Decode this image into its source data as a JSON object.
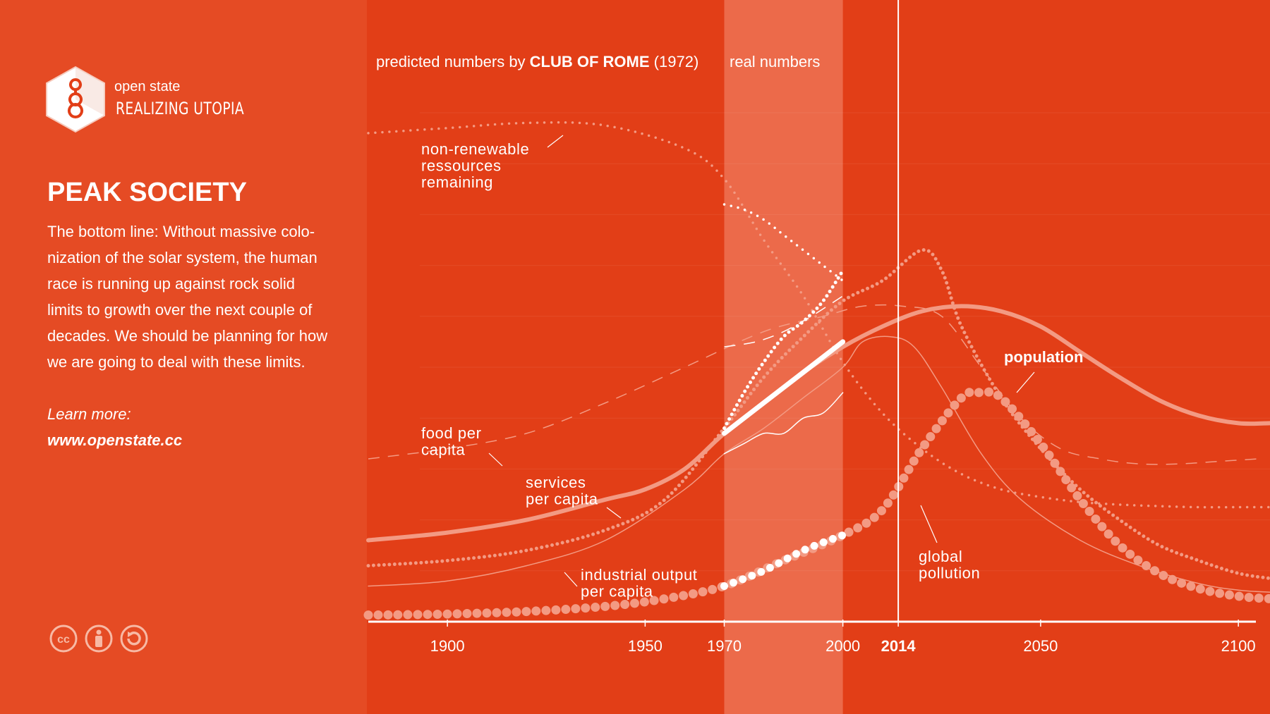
{
  "brand": {
    "name_top": "open state",
    "name_bottom": "REALIZING UTOPIA"
  },
  "sidebar": {
    "title": "PEAK SOCIETY",
    "body_lines": [
      "The bottom line: Without massive colo-",
      "nization of the solar system, the human",
      "race is running up against rock solid",
      "limits to growth over the next couple of",
      "decades. We should be planning for how",
      "we are going to deal with these limits."
    ],
    "learn_more_label": "Learn more:",
    "learn_more_link": "www.openstate.cc",
    "license_icons": [
      "cc-icon",
      "attribution-icon",
      "share-alike-icon"
    ]
  },
  "colors": {
    "background": "#e23e17",
    "sidebar": "#e54b24",
    "real_band": "#ec6a4a",
    "line_light": "#f39a83",
    "line_white": "#ffffff"
  },
  "chart_data": {
    "type": "line",
    "header": {
      "predicted_prefix": "predicted numbers by ",
      "predicted_bold": "CLUB OF ROME",
      "predicted_suffix": " (1972)",
      "real_label": "real numbers"
    },
    "x_ticks": [
      {
        "value": 1900,
        "label": "1900",
        "bold": false
      },
      {
        "value": 1950,
        "label": "1950",
        "bold": false
      },
      {
        "value": 1970,
        "label": "1970",
        "bold": false
      },
      {
        "value": 2000,
        "label": "2000",
        "bold": false
      },
      {
        "value": 2014,
        "label": "2014",
        "bold": true
      },
      {
        "value": 2050,
        "label": "2050",
        "bold": false
      },
      {
        "value": 2100,
        "label": "2100",
        "bold": false
      }
    ],
    "xlim": [
      1880,
      2108
    ],
    "ylim": [
      0,
      100
    ],
    "real_period": [
      1970,
      2000
    ],
    "marker_year": 2014,
    "grid": true,
    "series": [
      {
        "key": "resources",
        "label_lines": [
          "non-renewable",
          "ressources",
          "remaining"
        ],
        "style": "dotted-small",
        "predicted": [
          [
            1880,
            96
          ],
          [
            1900,
            97
          ],
          [
            1920,
            98
          ],
          [
            1940,
            97.5
          ],
          [
            1960,
            93
          ],
          [
            1970,
            87
          ],
          [
            1980,
            75
          ],
          [
            1990,
            64
          ],
          [
            2000,
            51
          ],
          [
            2010,
            41
          ],
          [
            2020,
            34
          ],
          [
            2030,
            29
          ],
          [
            2040,
            26
          ],
          [
            2050,
            24.5
          ],
          [
            2060,
            23.5
          ],
          [
            2070,
            23
          ],
          [
            2080,
            22.7
          ],
          [
            2090,
            22.5
          ],
          [
            2100,
            22.5
          ],
          [
            2108,
            22.5
          ]
        ],
        "real": [
          [
            1970,
            82
          ],
          [
            1975,
            81
          ],
          [
            1980,
            79
          ],
          [
            1985,
            76
          ],
          [
            1990,
            73
          ],
          [
            1995,
            70
          ],
          [
            2000,
            67
          ]
        ]
      },
      {
        "key": "food",
        "label_lines": [
          "food per",
          "capita"
        ],
        "style": "dashed",
        "predicted": [
          [
            1880,
            32
          ],
          [
            1900,
            34
          ],
          [
            1920,
            37
          ],
          [
            1940,
            43
          ],
          [
            1960,
            50
          ],
          [
            1980,
            57
          ],
          [
            1995,
            60
          ],
          [
            2005,
            62
          ],
          [
            2015,
            62
          ],
          [
            2025,
            60
          ],
          [
            2035,
            50
          ],
          [
            2045,
            40
          ],
          [
            2055,
            34
          ],
          [
            2065,
            32
          ],
          [
            2075,
            31
          ],
          [
            2085,
            31
          ],
          [
            2095,
            31.5
          ],
          [
            2105,
            32
          ]
        ],
        "real": [
          [
            1970,
            54
          ],
          [
            1978,
            55
          ],
          [
            1985,
            57
          ],
          [
            1992,
            60
          ],
          [
            2000,
            64
          ]
        ]
      },
      {
        "key": "services",
        "label_lines": [
          "services",
          "per capita"
        ],
        "style": "dotted-medium",
        "predicted": [
          [
            1880,
            11
          ],
          [
            1900,
            12
          ],
          [
            1920,
            14
          ],
          [
            1940,
            18
          ],
          [
            1955,
            24
          ],
          [
            1970,
            38
          ],
          [
            1980,
            48
          ],
          [
            1990,
            56
          ],
          [
            2000,
            63
          ],
          [
            2010,
            67
          ],
          [
            2020,
            73
          ],
          [
            2025,
            69
          ],
          [
            2030,
            58
          ],
          [
            2040,
            44
          ],
          [
            2050,
            34
          ],
          [
            2060,
            26
          ],
          [
            2070,
            20
          ],
          [
            2080,
            15
          ],
          [
            2090,
            12
          ],
          [
            2100,
            9.5
          ],
          [
            2108,
            8.5
          ]
        ],
        "real": [
          [
            1970,
            38
          ],
          [
            1975,
            45
          ],
          [
            1980,
            51
          ],
          [
            1985,
            56
          ],
          [
            1990,
            59
          ],
          [
            1995,
            63
          ],
          [
            2000,
            69
          ]
        ]
      },
      {
        "key": "population",
        "label_lines": [
          "population"
        ],
        "label_bold": true,
        "style": "solid-thick",
        "predicted": [
          [
            1880,
            16
          ],
          [
            1900,
            17.5
          ],
          [
            1920,
            20
          ],
          [
            1940,
            24
          ],
          [
            1950,
            26
          ],
          [
            1960,
            30
          ],
          [
            1970,
            37
          ],
          [
            1980,
            43
          ],
          [
            1990,
            49
          ],
          [
            2000,
            54
          ],
          [
            2010,
            58
          ],
          [
            2020,
            61
          ],
          [
            2030,
            62
          ],
          [
            2040,
            61
          ],
          [
            2050,
            58
          ],
          [
            2060,
            53
          ],
          [
            2070,
            48
          ],
          [
            2080,
            43.5
          ],
          [
            2090,
            40.5
          ],
          [
            2100,
            39
          ],
          [
            2108,
            39
          ]
        ],
        "real": [
          [
            1970,
            37
          ],
          [
            1980,
            43
          ],
          [
            1990,
            49
          ],
          [
            2000,
            55
          ]
        ]
      },
      {
        "key": "industry",
        "label_lines": [
          "industrial output",
          "per capita"
        ],
        "style": "solid-thin",
        "predicted": [
          [
            1880,
            7
          ],
          [
            1900,
            8
          ],
          [
            1920,
            11
          ],
          [
            1940,
            16
          ],
          [
            1960,
            26
          ],
          [
            1970,
            33
          ],
          [
            1980,
            38
          ],
          [
            1990,
            44
          ],
          [
            2000,
            50
          ],
          [
            2005,
            55
          ],
          [
            2012,
            56
          ],
          [
            2018,
            54
          ],
          [
            2025,
            46
          ],
          [
            2035,
            33
          ],
          [
            2045,
            24
          ],
          [
            2060,
            16
          ],
          [
            2075,
            11
          ],
          [
            2090,
            7.5
          ],
          [
            2100,
            6.2
          ],
          [
            2108,
            5.8
          ]
        ],
        "real": [
          [
            1970,
            33
          ],
          [
            1975,
            35
          ],
          [
            1980,
            37
          ],
          [
            1985,
            37
          ],
          [
            1990,
            40
          ],
          [
            1995,
            41
          ],
          [
            2000,
            45
          ]
        ]
      },
      {
        "key": "pollution",
        "label_lines": [
          "global",
          "pollution"
        ],
        "style": "dots-large",
        "predicted": [
          [
            1880,
            1.3
          ],
          [
            1900,
            1.5
          ],
          [
            1920,
            2
          ],
          [
            1940,
            3
          ],
          [
            1955,
            4.5
          ],
          [
            1970,
            7
          ],
          [
            1985,
            12
          ],
          [
            2000,
            17
          ],
          [
            2010,
            22
          ],
          [
            2020,
            34
          ],
          [
            2030,
            44
          ],
          [
            2035,
            45
          ],
          [
            2040,
            44
          ],
          [
            2050,
            35
          ],
          [
            2060,
            24
          ],
          [
            2070,
            15
          ],
          [
            2080,
            9.5
          ],
          [
            2090,
            6.5
          ],
          [
            2100,
            5
          ],
          [
            2108,
            4.5
          ]
        ],
        "real": [
          [
            1970,
            7
          ],
          [
            1980,
            10
          ],
          [
            1990,
            14
          ],
          [
            2000,
            17
          ]
        ]
      }
    ]
  }
}
